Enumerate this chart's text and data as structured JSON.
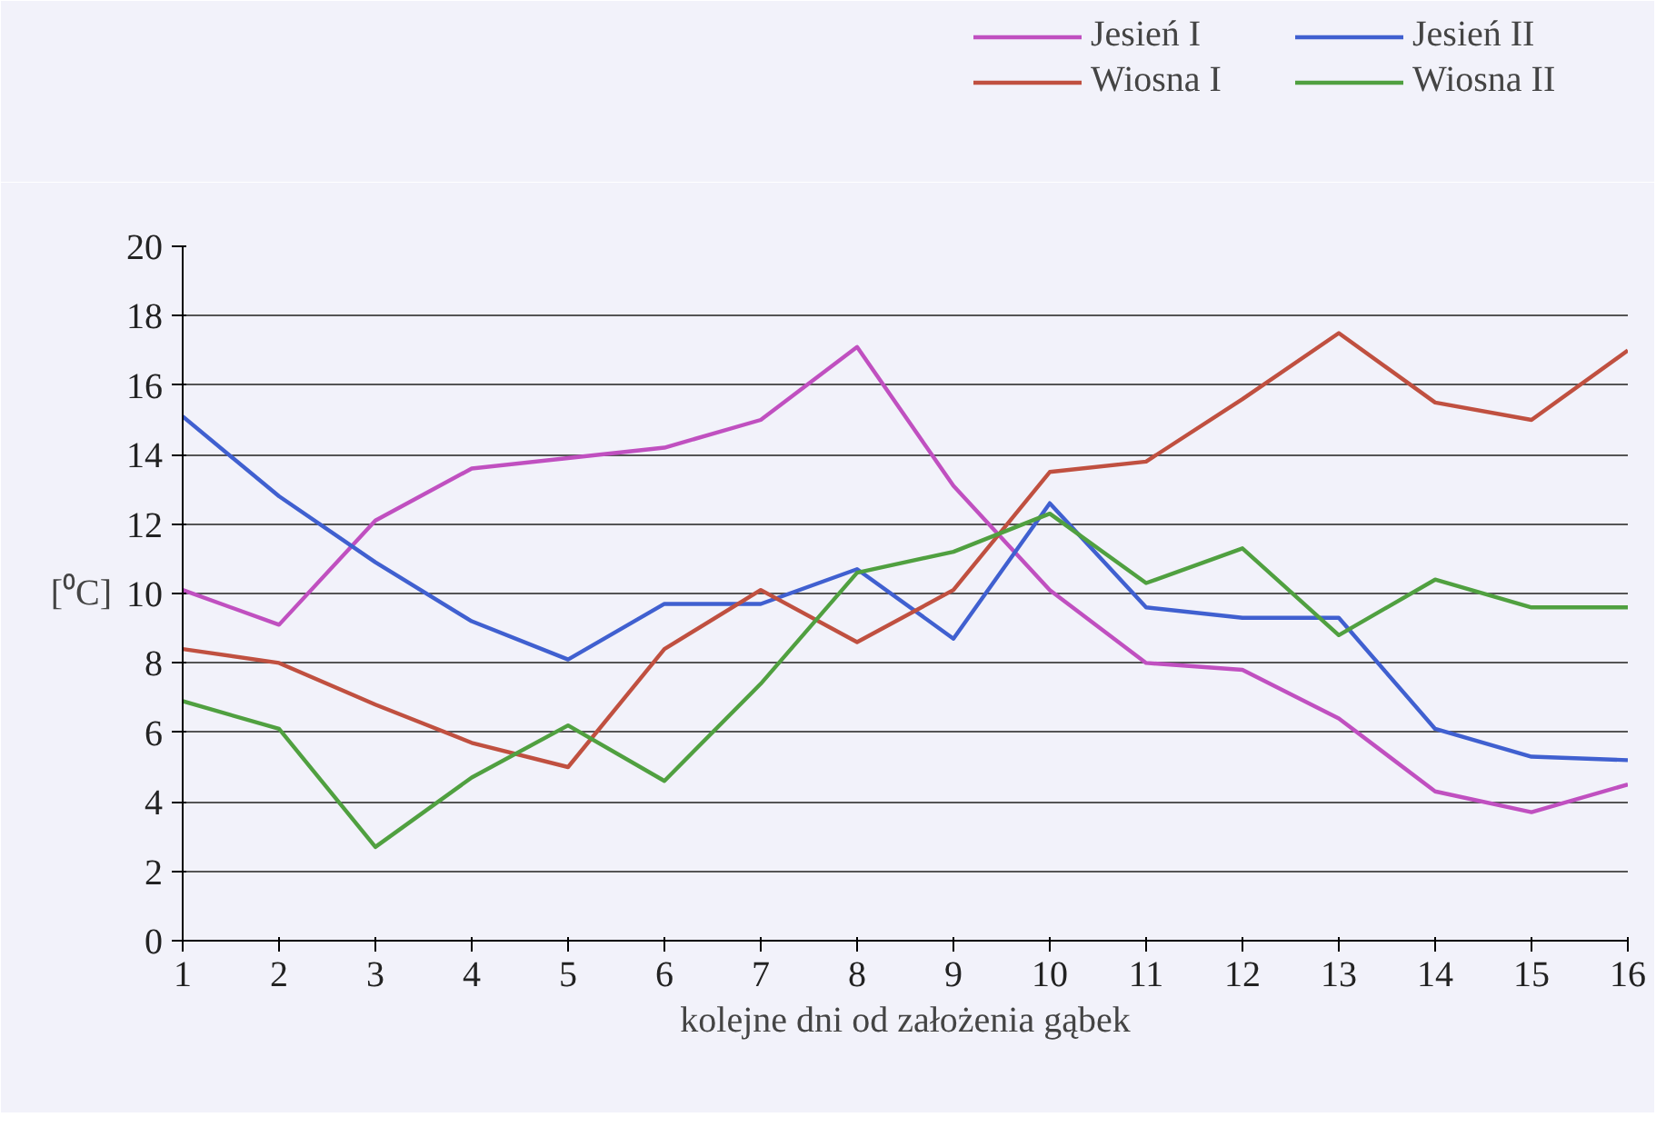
{
  "chart_data": {
    "type": "line",
    "xlabel": "kolejne dni od założenia gąbek",
    "ylabel": "[⁰C]",
    "x": [
      1,
      2,
      3,
      4,
      5,
      6,
      7,
      8,
      9,
      10,
      11,
      12,
      13,
      14,
      15,
      16
    ],
    "xlim": [
      1,
      16
    ],
    "xticks": [
      1,
      2,
      3,
      4,
      5,
      6,
      7,
      8,
      9,
      10,
      11,
      12,
      13,
      14,
      15,
      16
    ],
    "ylim": [
      0,
      20
    ],
    "yticks": [
      0,
      2,
      4,
      6,
      8,
      10,
      12,
      14,
      16,
      18,
      20
    ],
    "grid": "y",
    "legend": "top right",
    "marker": "none",
    "line_style": "solid",
    "series": [
      {
        "name": "Jesień I",
        "color": "#c050c0",
        "values": [
          10.1,
          9.1,
          12.1,
          13.6,
          13.9,
          14.2,
          15.0,
          17.1,
          13.1,
          10.1,
          8.0,
          7.8,
          6.4,
          4.3,
          3.7,
          4.5
        ]
      },
      {
        "name": "Jesień II",
        "color": "#4060d0",
        "values": [
          15.1,
          12.8,
          10.9,
          9.2,
          8.1,
          9.7,
          9.7,
          10.7,
          8.7,
          12.6,
          9.6,
          9.3,
          9.3,
          6.1,
          5.3,
          5.2
        ]
      },
      {
        "name": "Wiosna I",
        "color": "#c05040",
        "values": [
          8.4,
          8.0,
          6.8,
          5.7,
          5.0,
          8.4,
          10.1,
          8.6,
          10.1,
          13.5,
          13.8,
          15.6,
          17.5,
          15.5,
          15.0,
          17.0
        ]
      },
      {
        "name": "Wiosna II",
        "color": "#50a040",
        "values": [
          6.9,
          6.1,
          2.7,
          4.7,
          6.2,
          4.6,
          7.4,
          10.6,
          11.2,
          12.3,
          10.3,
          11.3,
          8.8,
          10.4,
          9.6,
          9.6
        ]
      }
    ]
  }
}
